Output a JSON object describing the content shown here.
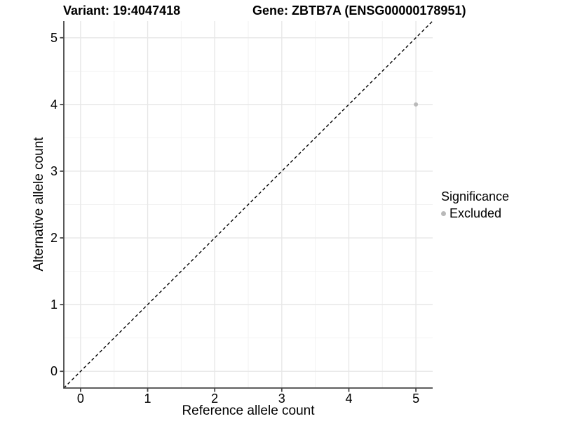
{
  "chart_data": {
    "type": "scatter",
    "titles": {
      "variant": "Variant: 19:4047418",
      "gene": "Gene: ZBTB7A (ENSG00000178951)"
    },
    "xlabel": "Reference allele count",
    "ylabel": "Alternative allele count",
    "x_range": [
      -0.25,
      5.25
    ],
    "y_range": [
      -0.25,
      5.25
    ],
    "x_ticks": [
      0,
      1,
      2,
      3,
      4,
      5
    ],
    "y_ticks": [
      0,
      1,
      2,
      3,
      4,
      5
    ],
    "x_minor_ticks": [
      0.5,
      1.5,
      2.5,
      3.5,
      4.5
    ],
    "y_minor_ticks": [
      0.5,
      1.5,
      2.5,
      3.5,
      4.5
    ],
    "grid": "major+minor",
    "points": [
      {
        "x": 5,
        "y": 4,
        "series": "Excluded"
      }
    ],
    "point_radius": 3,
    "identity_line": {
      "style": "dashed",
      "x1": -0.25,
      "y1": -0.25,
      "x2": 5.25,
      "y2": 5.25
    },
    "legend": {
      "title": "Significance",
      "position": "right",
      "items": [
        {
          "label": "Excluded",
          "color": "#b9b9b9"
        }
      ]
    },
    "colors": {
      "background": "#ffffff",
      "grid_major": "#e7e7e7",
      "grid_minor": "#f2f2f2",
      "axis": "#474747",
      "identity_line": "#000000",
      "text": "#000000",
      "point_excluded": "#b9b9b9"
    }
  }
}
